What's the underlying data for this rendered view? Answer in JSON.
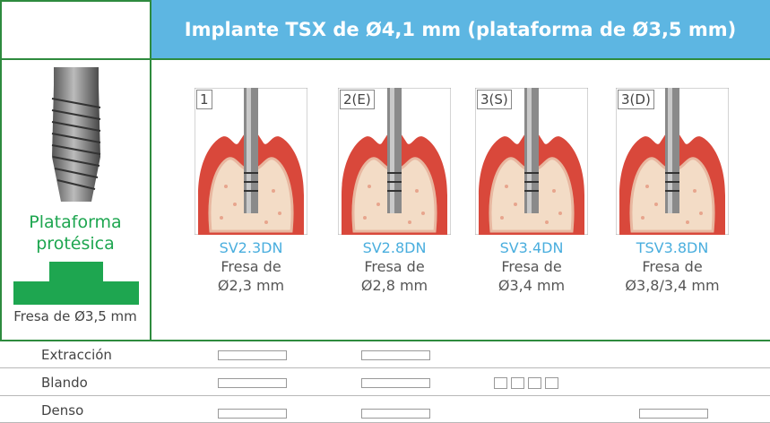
{
  "header": {
    "title": "Implante TSX de Ø4,1 mm (plataforma de Ø3,5 mm)"
  },
  "left": {
    "caption": "Plataforma protésica",
    "drill": "Fresa de Ø3,5 mm"
  },
  "drills": [
    {
      "step": "1",
      "code": "SV2.3DN",
      "line1": "Fresa de",
      "line2": "Ø2,3 mm"
    },
    {
      "step": "2(E)",
      "code": "SV2.8DN",
      "line1": "Fresa de",
      "line2": "Ø2,8 mm"
    },
    {
      "step": "3(S)",
      "code": "SV3.4DN",
      "line1": "Fresa de",
      "line2": "Ø3,4 mm"
    },
    {
      "step": "3(D)",
      "code": "TSV3.8DN",
      "line1": "Fresa de",
      "line2": "Ø3,8/3,4 mm"
    }
  ],
  "rows": [
    "Extracción",
    "Blando",
    "Denso"
  ]
}
